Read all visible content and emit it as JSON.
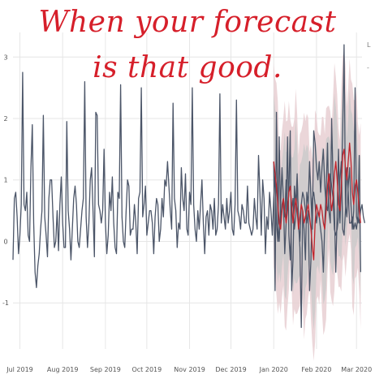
{
  "caption": {
    "line1": "When your forecast",
    "line2": "is that good."
  },
  "legend_fragments": [
    "L",
    "-"
  ],
  "colors": {
    "actual": "#4b5568",
    "forecast": "#c2242c",
    "band_outer": "#e8cfd2",
    "band_inner": "#c9c9c9",
    "caption": "#d61f2a",
    "grid": "#e6e6e6"
  },
  "chart_data": {
    "type": "line",
    "title": "",
    "xlabel": "",
    "ylabel": "",
    "xlim": [
      "2019-06-26",
      "2020-03-05"
    ],
    "ylim": [
      -1.75,
      3.4
    ],
    "x_ticks": [
      "2019-07-01",
      "2019-08-01",
      "2019-09-01",
      "2019-10-01",
      "2019-11-01",
      "2019-12-01",
      "2020-01-01",
      "2020-02-01",
      "2020-03-01"
    ],
    "x_tick_labels": [
      "Jul 2019",
      "Aug 2019",
      "Sep 2019",
      "Oct 2019",
      "Nov 2019",
      "Dec 2019",
      "Jan 2020",
      "Feb 2020",
      "Mar 2020"
    ],
    "y_ticks": [
      -1,
      0,
      1,
      2,
      3
    ],
    "grid": true,
    "series": [
      {
        "start_date": "2019-06-26",
        "values": [
          -0.3,
          0.7,
          0.8,
          0.4,
          -0.2,
          0.1,
          0.6,
          2.75,
          0.6,
          0.5,
          0.8,
          0.1,
          0.0,
          1.2,
          1.9,
          0.3,
          -0.5,
          -0.75,
          -0.4,
          -0.2,
          0.2,
          0.5,
          2.05,
          0.4,
          0.1,
          -0.25,
          0.7,
          1.0,
          1.0,
          0.4,
          -0.1,
          0.0,
          0.5,
          -0.15,
          0.6,
          1.05,
          0.3,
          -0.1,
          -0.1,
          1.95,
          0.5,
          0.2,
          -0.3,
          0.2,
          0.7,
          0.9,
          0.6,
          0.0,
          -0.1,
          0.2,
          0.5,
          0.7,
          2.6,
          0.4,
          -0.1,
          0.3,
          1.0,
          1.2,
          0.5,
          -0.25,
          2.1,
          2.05,
          0.6,
          0.5,
          0.3,
          0.5,
          1.5,
          0.3,
          -0.2,
          0.1,
          0.8,
          0.5,
          1.05,
          0.3,
          -0.1,
          -0.2,
          0.8,
          0.7,
          2.55,
          0.4,
          0.0,
          -0.1,
          0.5,
          1.0,
          0.9,
          0.1,
          0.2,
          0.2,
          0.6,
          0.3,
          -0.2,
          0.7,
          0.8,
          2.5,
          0.4,
          0.6,
          0.9,
          0.1,
          0.3,
          0.5,
          0.5,
          0.3,
          -0.2,
          0.4,
          0.7,
          0.6,
          0.0,
          0.2,
          0.7,
          0.4,
          1.0,
          0.9,
          1.3,
          0.9,
          0.5,
          0.2,
          2.25,
          0.7,
          0.5,
          -0.1,
          0.3,
          0.2,
          1.2,
          0.7,
          0.5,
          1.1,
          0.2,
          0.1,
          0.8,
          0.6,
          2.5,
          0.6,
          0.2,
          0.0,
          0.5,
          0.2,
          0.6,
          1.0,
          0.3,
          -0.2,
          0.4,
          0.5,
          0.1,
          0.6,
          0.5,
          0.2,
          0.7,
          0.1,
          0.2,
          0.6,
          2.4,
          0.3,
          0.6,
          0.4,
          0.2,
          0.7,
          0.3,
          0.5,
          0.8,
          0.2,
          0.1,
          0.6,
          2.3,
          0.5,
          0.4,
          0.2,
          0.6,
          0.5,
          0.3,
          0.3,
          0.9,
          0.3,
          0.2,
          0.1,
          0.2,
          0.7,
          0.4,
          0.2,
          1.4,
          0.8,
          0.1,
          1.0,
          0.7,
          -0.2,
          0.4,
          0.2,
          0.8,
          0.5,
          0.1,
          0.7,
          1.1,
          0.3,
          0.0,
          1.7,
          0.3,
          0.6,
          0.7,
          -0.2,
          0.3,
          1.7,
          0.1,
          -0.3,
          0.5,
          0.7,
          0.2,
          0.4,
          1.0,
          0.3,
          -0.1,
          -1.4,
          0.5,
          0.2,
          -0.3,
          0.8,
          0.6,
          1.3,
          0.7,
          0.2,
          1.8,
          1.6,
          1.2,
          1.0,
          1.3,
          0.8,
          1.2,
          1.5,
          0.9,
          0.6,
          0.5,
          0.8,
          1.1,
          0.9,
          0.7,
          0.2,
          0.1,
          0.2,
          0.4,
          1.0,
          1.3,
          0.2,
          0.1,
          0.5,
          1.2,
          0.8,
          0.3,
          0.3,
          0.4,
          0.2,
          0.3,
          0.2,
          0.4,
          0.3,
          0.5,
          0.6,
          0.4,
          0.3
        ]
      },
      {
        "start_date": "2020-01-01",
        "values": [
          1.3,
          -0.8,
          2.1,
          0.3,
          0.0,
          0.6,
          1.2,
          0.7,
          0.4,
          1.0,
          0.5,
          0.8,
          1.8,
          -0.8,
          -0.3,
          0.9,
          0.6,
          1.1,
          0.3,
          0.0,
          0.6,
          0.8,
          0.7,
          0.5,
          0.3,
          0.5,
          -0.8,
          -0.3,
          0.7,
          0.8,
          0.6,
          0.3,
          0.5,
          0.4,
          0.2,
          0.0,
          -0.5,
          0.3,
          0.8,
          1.6,
          0.5,
          0.3,
          2.0,
          1.0,
          0.5,
          -0.5,
          0.5,
          1.5,
          0.3,
          0.9,
          1.8,
          3.2,
          0.6,
          0.4,
          0.9,
          1.2,
          0.6,
          0.2,
          0.5,
          2.5,
          0.4,
          0.3,
          1.4,
          -0.5
        ]
      },
      {
        "start_date": "2020-01-01",
        "values": [
          1.3,
          1.1,
          0.9,
          0.6,
          0.3,
          0.2,
          0.5,
          0.7,
          0.5,
          0.3,
          0.5,
          0.8,
          0.9,
          0.6,
          0.3,
          0.5,
          0.7,
          0.5,
          0.2,
          0.4,
          0.6,
          0.5,
          0.3,
          0.4,
          0.5,
          0.6,
          0.4,
          0.2,
          -0.1,
          -0.3,
          0.3,
          0.6,
          0.5,
          0.4,
          0.6,
          0.5,
          0.3,
          0.2,
          0.5,
          0.9,
          1.1,
          0.7,
          0.5,
          0.7,
          1.1,
          1.3,
          1.0,
          0.6,
          0.5,
          0.9,
          1.4,
          1.5,
          1.2,
          1.0,
          1.3,
          1.6,
          1.3,
          0.8,
          0.6,
          0.9,
          1.0,
          0.8,
          0.5,
          0.3
        ]
      }
    ]
  }
}
